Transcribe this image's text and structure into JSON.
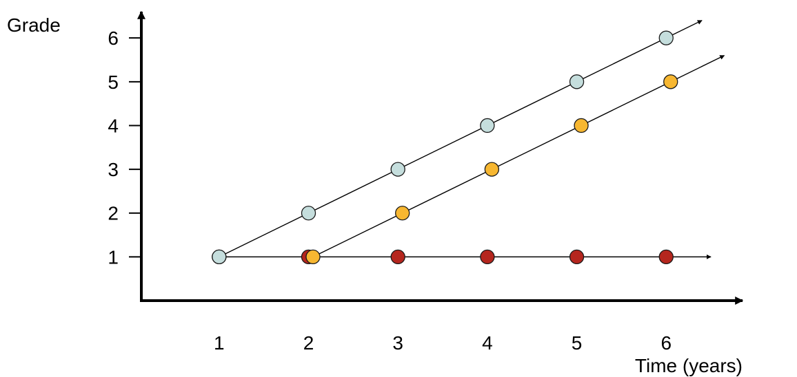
{
  "chart_data": {
    "type": "line",
    "title": "",
    "xlabel": "Time (years)",
    "ylabel": "Grade",
    "x_ticks": [
      "1",
      "2",
      "3",
      "4",
      "5",
      "6"
    ],
    "y_ticks": [
      "1",
      "2",
      "3",
      "4",
      "5",
      "6"
    ],
    "xlim": [
      0.13,
      6.8
    ],
    "ylim": [
      0,
      6.6
    ],
    "grid": false,
    "series": [
      {
        "color": "#c5dedd",
        "points": [
          [
            1,
            1
          ],
          [
            2,
            2
          ],
          [
            3,
            3
          ],
          [
            4,
            4
          ],
          [
            5,
            5
          ],
          [
            6,
            6
          ]
        ],
        "line": [
          [
            1,
            1
          ],
          [
            6.4,
            6.4
          ]
        ]
      },
      {
        "color": "#f7b731",
        "points": [
          [
            2.05,
            1
          ],
          [
            3.05,
            2
          ],
          [
            4.05,
            3
          ],
          [
            5.05,
            4
          ],
          [
            6.05,
            5
          ]
        ],
        "line": [
          [
            2.05,
            1
          ],
          [
            6.65,
            5.6
          ]
        ]
      },
      {
        "color": "#b5261e",
        "points": [
          [
            1,
            1
          ],
          [
            2,
            1
          ],
          [
            3,
            1
          ],
          [
            4,
            1
          ],
          [
            5,
            1
          ],
          [
            6,
            1
          ]
        ],
        "line": [
          [
            1,
            1
          ],
          [
            6.5,
            1
          ]
        ]
      }
    ]
  }
}
